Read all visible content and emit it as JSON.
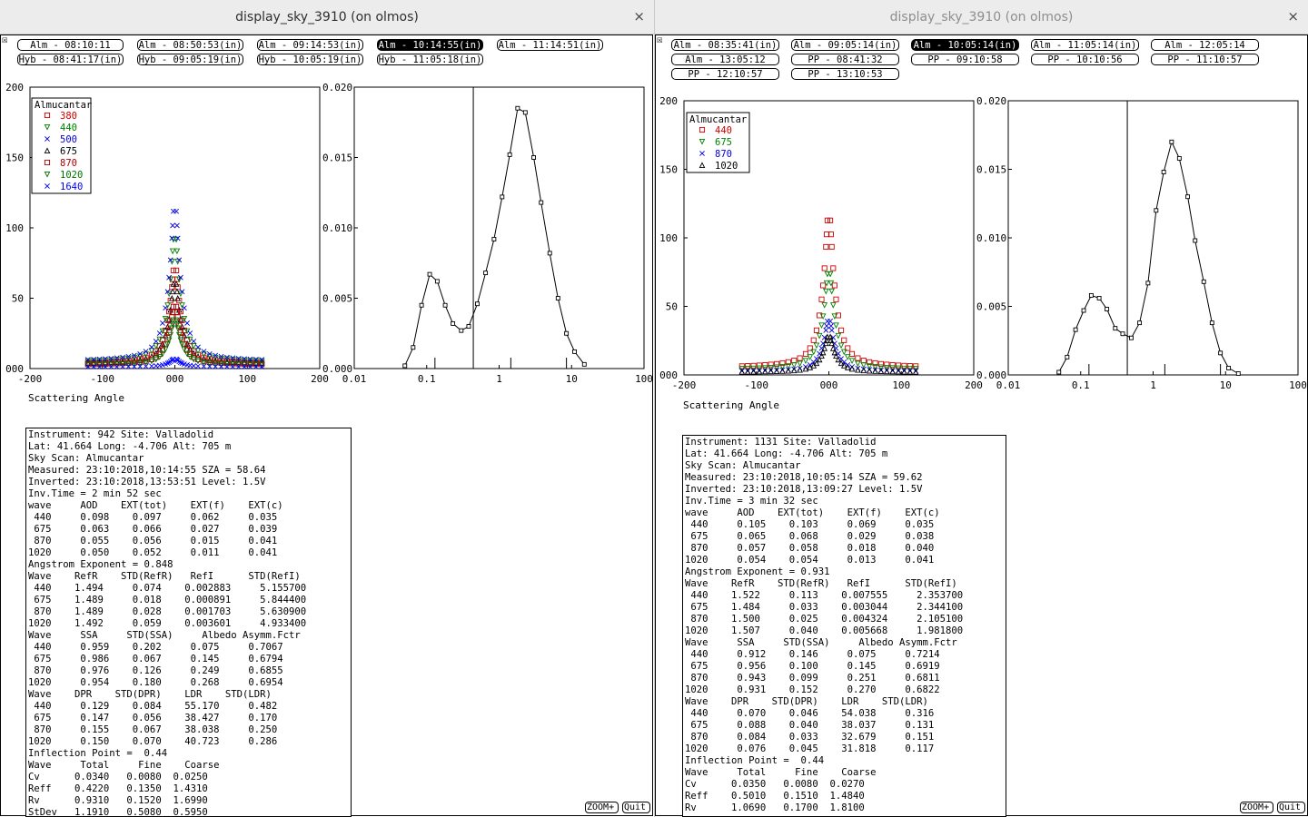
{
  "windows": [
    {
      "title": "display_sky_3910 (on olmos)",
      "close": "×",
      "corner": "☒",
      "buttons": [
        {
          "label": "Alm - 08:10:11",
          "selected": false
        },
        {
          "label": "Alm - 08:50:53(in)",
          "selected": false
        },
        {
          "label": "Alm - 09:14:53(in)",
          "selected": false
        },
        {
          "label": "Alm - 10:14:55(in)",
          "selected": true
        },
        {
          "label": "Alm - 11:14:51(in)",
          "selected": false
        },
        {
          "label": "Hyb - 08:41:17(in)",
          "selected": false
        },
        {
          "label": "Hyb - 09:05:19(in)",
          "selected": false
        },
        {
          "label": "Hyb - 10:05:19(in)",
          "selected": false
        },
        {
          "label": "Hyb - 11:05:18(in)",
          "selected": false
        }
      ],
      "xlabel": "Scattering Angle",
      "zoom_label": "ZOOM+",
      "quit_label": "Quit",
      "info_text": "Instrument: 942 Site: Valladolid\nLat: 41.664 Long: -4.706 Alt: 705 m\nSky Scan: Almucantar\nMeasured: 23:10:2018,10:14:55 SZA = 58.64\nInverted: 23:10:2018,13:53:51 Level: 1.5V\nInv.Time = 2 min 52 sec\nwave     AOD    EXT(tot)    EXT(f)    EXT(c)\n 440     0.098    0.097     0.062     0.035\n 675     0.063    0.066     0.027     0.039\n 870     0.055    0.056     0.015     0.041\n1020     0.050    0.052     0.011     0.041\nAngstrom Exponent = 0.848\nWave    RefR    STD(RefR)   RefI      STD(RefI)\n 440    1.494     0.074    0.002883     5.155700\n 675    1.489     0.018    0.000891     5.844400\n 870    1.489     0.028    0.001703     5.630900\n1020    1.492     0.059    0.003601     4.933400\nWave     SSA     STD(SSA)     Albedo Asymm.Fctr\n 440     0.959    0.202     0.075     0.7067\n 675     0.986    0.067     0.145     0.6794\n 870     0.976    0.126     0.249     0.6855\n1020     0.954    0.180     0.268     0.6954\nWave    DPR    STD(DPR)    LDR    STD(LDR)\n 440     0.129    0.084    55.170     0.482\n 675     0.147    0.056    38.427     0.170\n 870     0.155    0.067    38.038     0.250\n1020     0.150    0.070    40.723     0.286\nInflection Point =  0.44\nWave     Total     Fine    Coarse\nCv      0.0340   0.0080  0.0250\nReff    0.4220   0.1350  1.4310\nRv      0.9310   0.1520  1.6990\nStDev   1.1910   0.5080  0.5950",
      "chart_data": [
        {
          "type": "scatter",
          "title": "",
          "xlabel": "Scattering Angle",
          "ylabel": "",
          "xlim": [
            -200,
            200
          ],
          "ylim": [
            0,
            200
          ],
          "xticks": [
            "-200",
            "-100",
            "000",
            "100",
            "200"
          ],
          "yticks": [
            "000",
            "50",
            "100",
            "150",
            "200"
          ],
          "legend": {
            "title": "Almucantar",
            "placement": "top-left"
          },
          "series": [
            {
              "name": "380",
              "color": "#d00000",
              "marker": "square",
              "peak": 72
            },
            {
              "name": "440",
              "color": "#008000",
              "marker": "triangle-down",
              "peak": 95
            },
            {
              "name": "500",
              "color": "#0000e0",
              "marker": "x",
              "peak": 116
            },
            {
              "name": "675",
              "color": "#000000",
              "marker": "triangle-up",
              "peak": 62
            },
            {
              "name": "870",
              "color": "#b00000",
              "marker": "square",
              "peak": 45
            },
            {
              "name": "1020",
              "color": "#007000",
              "marker": "triangle-down",
              "peak": 35
            },
            {
              "name": "1640",
              "color": "#0000ff",
              "marker": "x",
              "peak": 6
            }
          ]
        },
        {
          "type": "line",
          "title": "",
          "xlabel": "",
          "ylabel": "",
          "xscale": "log",
          "xlim": [
            0.01,
            100
          ],
          "ylim": [
            0,
            0.02
          ],
          "xticks": [
            "0.01",
            "0.1",
            "1",
            "10",
            "100"
          ],
          "yticks": [
            "0.000",
            "0.005",
            "0.010",
            "0.015",
            "0.020"
          ],
          "inflection_point": 0.44,
          "series": [
            {
              "name": "",
              "x": [
                0.05,
                0.065,
                0.085,
                0.11,
                0.14,
                0.18,
                0.23,
                0.3,
                0.38,
                0.5,
                0.65,
                0.85,
                1.1,
                1.4,
                1.8,
                2.3,
                3.0,
                3.8,
                5.0,
                6.5,
                8.5,
                11,
                15
              ],
              "y": [
                0.0002,
                0.0015,
                0.0045,
                0.0067,
                0.0062,
                0.0045,
                0.0032,
                0.0027,
                0.003,
                0.0046,
                0.0068,
                0.0092,
                0.0122,
                0.0152,
                0.0185,
                0.0182,
                0.015,
                0.0118,
                0.0082,
                0.005,
                0.0025,
                0.0012,
                0.0003
              ]
            }
          ]
        }
      ]
    },
    {
      "title": "display_sky_3910 (on olmos)",
      "close": "×",
      "corner": "☒",
      "buttons": [
        {
          "label": "Alm - 08:35:41(in)",
          "selected": false
        },
        {
          "label": "Alm - 09:05:14(in)",
          "selected": false
        },
        {
          "label": "Alm - 10:05:14(in)",
          "selected": true
        },
        {
          "label": "Alm - 11:05:14(in)",
          "selected": false
        },
        {
          "label": "Alm - 12:05:14",
          "selected": false
        },
        {
          "label": "Alm - 13:05:12",
          "selected": false
        },
        {
          "label": "PP - 08:41:32",
          "selected": false
        },
        {
          "label": "PP - 09:10:58",
          "selected": false
        },
        {
          "label": "PP - 10:10:56",
          "selected": false
        },
        {
          "label": "PP - 11:10:57",
          "selected": false
        },
        {
          "label": "PP - 12:10:57",
          "selected": false
        },
        {
          "label": "PP - 13:10:53",
          "selected": false
        }
      ],
      "xlabel": "Scattering Angle",
      "zoom_label": "ZOOM+",
      "quit_label": "Quit",
      "info_text": "Instrument: 1131 Site: Valladolid\nLat: 41.664 Long: -4.706 Alt: 705 m\nSky Scan: Almucantar\nMeasured: 23:10:2018,10:05:14 SZA = 59.62\nInverted: 23:10:2018,13:09:27 Level: 1.5V\nInv.Time = 3 min 32 sec\nwave     AOD    EXT(tot)    EXT(f)    EXT(c)\n 440     0.105    0.103     0.069     0.035\n 675     0.065    0.068     0.029     0.038\n 870     0.057    0.058     0.018     0.040\n1020     0.054    0.054     0.013     0.041\nAngstrom Exponent = 0.931\nWave    RefR    STD(RefR)   RefI      STD(RefI)\n 440    1.522     0.113    0.007555     2.353700\n 675    1.484     0.033    0.003044     2.344100\n 870    1.500     0.025    0.004324     2.105100\n1020    1.507     0.040    0.005668     1.981800\nWave     SSA     STD(SSA)     Albedo Asymm.Fctr\n 440     0.912    0.146     0.075     0.7214\n 675     0.956    0.100     0.145     0.6919\n 870     0.943    0.099     0.251     0.6811\n1020     0.931    0.152     0.270     0.6822\nWave    DPR    STD(DPR)    LDR    STD(LDR)\n 440     0.070    0.046    54.038     0.316\n 675     0.088    0.040    38.037     0.131\n 870     0.084    0.033    32.679     0.151\n1020     0.076    0.045    31.818     0.117\nInflection Point =  0.44\nWave     Total     Fine    Coarse\nCv      0.0350   0.0080  0.0270\nReff    0.5010   0.1510  1.4840\nRv      1.0690   0.1700  1.8100",
      "chart_data": [
        {
          "type": "scatter",
          "title": "",
          "xlabel": "Scattering Angle",
          "ylabel": "",
          "xlim": [
            -200,
            200
          ],
          "ylim": [
            0,
            200
          ],
          "xticks": [
            "-200",
            "-100",
            "000",
            "100",
            "200"
          ],
          "yticks": [
            "000",
            "50",
            "100",
            "150",
            "200"
          ],
          "legend": {
            "title": "Almucantar",
            "placement": "top-left"
          },
          "series": [
            {
              "name": "440",
              "color": "#d00000",
              "marker": "square",
              "peak": 117
            },
            {
              "name": "675",
              "color": "#008000",
              "marker": "triangle-down",
              "peak": 76
            },
            {
              "name": "870",
              "color": "#0000e0",
              "marker": "x",
              "peak": 40
            },
            {
              "name": "1020",
              "color": "#000000",
              "marker": "triangle-up",
              "peak": 28
            }
          ]
        },
        {
          "type": "line",
          "title": "",
          "xlabel": "",
          "ylabel": "",
          "xscale": "log",
          "xlim": [
            0.01,
            100
          ],
          "ylim": [
            0,
            0.02
          ],
          "xticks": [
            "0.01",
            "0.1",
            "1",
            "10",
            "100"
          ],
          "yticks": [
            "0.000",
            "0.005",
            "0.010",
            "0.015",
            "0.020"
          ],
          "inflection_point": 0.44,
          "series": [
            {
              "name": "",
              "x": [
                0.05,
                0.065,
                0.085,
                0.11,
                0.14,
                0.18,
                0.23,
                0.3,
                0.38,
                0.5,
                0.65,
                0.85,
                1.1,
                1.4,
                1.8,
                2.3,
                3.0,
                3.8,
                5.0,
                6.5,
                8.5,
                11,
                15
              ],
              "y": [
                0.0002,
                0.0013,
                0.0033,
                0.0047,
                0.0058,
                0.0056,
                0.0048,
                0.0034,
                0.003,
                0.0027,
                0.0038,
                0.0067,
                0.012,
                0.0148,
                0.017,
                0.0158,
                0.013,
                0.0098,
                0.0068,
                0.0038,
                0.0016,
                0.0005,
                0.0001
              ]
            }
          ]
        }
      ]
    }
  ]
}
